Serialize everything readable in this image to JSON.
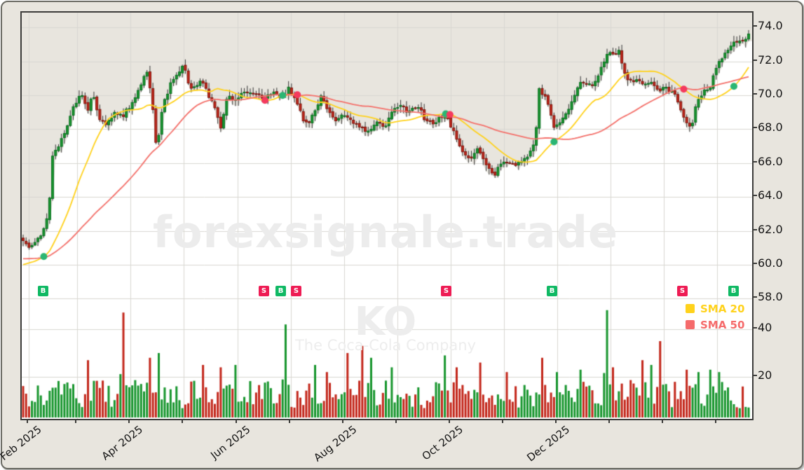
{
  "watermark": {
    "site": "forexsignale.trade",
    "symbol": "KO",
    "company": "The Coca-Cola Company"
  },
  "legend": [
    {
      "name": "sma20",
      "label": "SMA 20",
      "color": "#ffd21c"
    },
    {
      "name": "sma50",
      "label": "SMA 50",
      "color": "#f56b6b"
    }
  ],
  "chart_data": {
    "type": "candlestick",
    "symbol": "KO",
    "candle_count": 247,
    "price_axis": {
      "ticks": [
        74.0,
        72.0,
        70.0,
        68.0,
        66.0,
        64.0,
        62.0,
        60.0,
        58.0
      ],
      "labels": [
        "74.0",
        "72.0",
        "70.0",
        "68.0",
        "66.0",
        "64.0",
        "62.0",
        "60.0",
        "58.0"
      ],
      "range": [
        57.4,
        74.9
      ]
    },
    "volume_axis": {
      "ticks": [
        40,
        20
      ],
      "labels": [
        "40",
        "20"
      ],
      "range": [
        0,
        60
      ]
    },
    "x_axis": {
      "tick_x": [
        36,
        105,
        181,
        257,
        334,
        410,
        486,
        562,
        638,
        714,
        790,
        866,
        942,
        1018
      ],
      "labels": [
        "Feb 2025",
        "",
        "Apr 2025",
        "",
        "Jun 2025",
        "",
        "Aug 2025",
        "",
        "Oct 2025",
        "",
        "Dec 2025",
        "",
        "",
        ""
      ]
    },
    "close_path": [
      [
        0,
        61.4
      ],
      [
        0.01,
        60.9
      ],
      [
        0.019,
        61.5
      ],
      [
        0.029,
        62.1
      ],
      [
        0.035,
        63.0
      ],
      [
        0.041,
        66.6
      ],
      [
        0.05,
        67.1
      ],
      [
        0.062,
        68.4
      ],
      [
        0.071,
        69.5
      ],
      [
        0.081,
        70.0
      ],
      [
        0.089,
        69.0
      ],
      [
        0.096,
        70.2
      ],
      [
        0.104,
        68.7
      ],
      [
        0.115,
        68.3
      ],
      [
        0.126,
        68.9
      ],
      [
        0.137,
        68.8
      ],
      [
        0.149,
        69.4
      ],
      [
        0.16,
        70.4
      ],
      [
        0.171,
        71.5
      ],
      [
        0.178,
        69.6
      ],
      [
        0.184,
        66.6
      ],
      [
        0.192,
        69.3
      ],
      [
        0.203,
        70.6
      ],
      [
        0.215,
        71.3
      ],
      [
        0.221,
        71.9
      ],
      [
        0.228,
        70.6
      ],
      [
        0.238,
        70.4
      ],
      [
        0.246,
        71.0
      ],
      [
        0.256,
        70.0
      ],
      [
        0.266,
        69.0
      ],
      [
        0.273,
        67.9
      ],
      [
        0.281,
        70.0
      ],
      [
        0.292,
        69.7
      ],
      [
        0.304,
        70.2
      ],
      [
        0.318,
        70.0
      ],
      [
        0.332,
        69.9
      ],
      [
        0.346,
        70.1
      ],
      [
        0.357,
        69.9
      ],
      [
        0.366,
        70.4
      ],
      [
        0.375,
        69.8
      ],
      [
        0.386,
        68.6
      ],
      [
        0.394,
        68.4
      ],
      [
        0.405,
        69.3
      ],
      [
        0.411,
        69.9
      ],
      [
        0.42,
        69.2
      ],
      [
        0.431,
        68.6
      ],
      [
        0.443,
        68.9
      ],
      [
        0.454,
        68.4
      ],
      [
        0.466,
        68.2
      ],
      [
        0.476,
        67.8
      ],
      [
        0.487,
        68.4
      ],
      [
        0.499,
        68.1
      ],
      [
        0.51,
        69.2
      ],
      [
        0.522,
        69.3
      ],
      [
        0.533,
        69.0
      ],
      [
        0.544,
        69.4
      ],
      [
        0.555,
        68.5
      ],
      [
        0.565,
        68.3
      ],
      [
        0.576,
        68.8
      ],
      [
        0.586,
        68.5
      ],
      [
        0.596,
        67.7
      ],
      [
        0.606,
        66.6
      ],
      [
        0.617,
        66.3
      ],
      [
        0.627,
        66.8
      ],
      [
        0.637,
        66.1
      ],
      [
        0.646,
        65.5
      ],
      [
        0.649,
        65.2
      ],
      [
        0.656,
        65.9
      ],
      [
        0.667,
        66.0
      ],
      [
        0.677,
        65.9
      ],
      [
        0.688,
        66.2
      ],
      [
        0.699,
        66.6
      ],
      [
        0.706,
        67.3
      ],
      [
        0.711,
        70.4
      ],
      [
        0.718,
        70.0
      ],
      [
        0.725,
        69.2
      ],
      [
        0.731,
        68.1
      ],
      [
        0.739,
        68.3
      ],
      [
        0.749,
        69.0
      ],
      [
        0.758,
        69.8
      ],
      [
        0.768,
        70.8
      ],
      [
        0.778,
        70.5
      ],
      [
        0.787,
        70.7
      ],
      [
        0.797,
        71.6
      ],
      [
        0.805,
        72.5
      ],
      [
        0.814,
        72.3
      ],
      [
        0.822,
        72.6
      ],
      [
        0.829,
        71.3
      ],
      [
        0.837,
        70.8
      ],
      [
        0.846,
        70.9
      ],
      [
        0.856,
        70.5
      ],
      [
        0.866,
        70.8
      ],
      [
        0.875,
        70.2
      ],
      [
        0.885,
        70.4
      ],
      [
        0.894,
        70.2
      ],
      [
        0.901,
        69.8
      ],
      [
        0.909,
        69.0
      ],
      [
        0.917,
        68.1
      ],
      [
        0.923,
        68.3
      ],
      [
        0.928,
        69.6
      ],
      [
        0.936,
        70.1
      ],
      [
        0.946,
        70.4
      ],
      [
        0.955,
        71.6
      ],
      [
        0.965,
        72.3
      ],
      [
        0.975,
        72.8
      ],
      [
        0.985,
        73.3
      ],
      [
        0.994,
        73.2
      ],
      [
        1,
        73.5
      ]
    ],
    "prehistory": {
      "days": 50,
      "from": 61.0,
      "to": 59.7
    },
    "sma_periods": {
      "sma20": 20,
      "sma50": 50
    },
    "volume_base": 11,
    "volume_spikes": [
      [
        0.089,
        27
      ],
      [
        0.137,
        47
      ],
      [
        0.173,
        28
      ],
      [
        0.186,
        30
      ],
      [
        0.248,
        25
      ],
      [
        0.271,
        24
      ],
      [
        0.292,
        25
      ],
      [
        0.362,
        42
      ],
      [
        0.403,
        25
      ],
      [
        0.419,
        22
      ],
      [
        0.448,
        30
      ],
      [
        0.468,
        33
      ],
      [
        0.48,
        28
      ],
      [
        0.509,
        24
      ],
      [
        0.58,
        29
      ],
      [
        0.599,
        24
      ],
      [
        0.632,
        26
      ],
      [
        0.667,
        22
      ],
      [
        0.715,
        28
      ],
      [
        0.736,
        22
      ],
      [
        0.767,
        23
      ],
      [
        0.806,
        48
      ],
      [
        0.815,
        24
      ],
      [
        0.852,
        27
      ],
      [
        0.867,
        25
      ],
      [
        0.879,
        35
      ],
      [
        0.915,
        23
      ],
      [
        0.93,
        22
      ],
      [
        0.949,
        23
      ],
      [
        0.959,
        22
      ]
    ],
    "signals": [
      {
        "t": 0.029,
        "type": "B",
        "dot": "green"
      },
      {
        "t": 0.333,
        "type": "S",
        "dot": "red"
      },
      {
        "t": 0.357,
        "type": "B",
        "dot": "green"
      },
      {
        "t": 0.378,
        "type": "S",
        "dot": "red"
      },
      {
        "t": 0.585,
        "type": "S",
        "dot": "both"
      },
      {
        "t": 0.73,
        "type": "B",
        "dot": "green"
      },
      {
        "t": 0.91,
        "type": "S",
        "dot": "red"
      },
      {
        "t": 0.981,
        "type": "B",
        "dot": "green"
      }
    ],
    "colors": {
      "frame_bg": "#e8e5de",
      "plot_white": "#ffffff",
      "grid": "#d9d7d2",
      "candle_up": "#18962e",
      "candle_up_edge": "#0a6e21",
      "candle_down": "#c3271b",
      "candle_down_edge": "#7e150d",
      "wick": "#333333",
      "sma20": "#ffd21c",
      "sma50": "#f4716b",
      "buy_badge": "#10b964",
      "sell_badge": "#ee1c54",
      "dot_green": "#2bb673",
      "dot_red": "#f43a5e"
    }
  }
}
